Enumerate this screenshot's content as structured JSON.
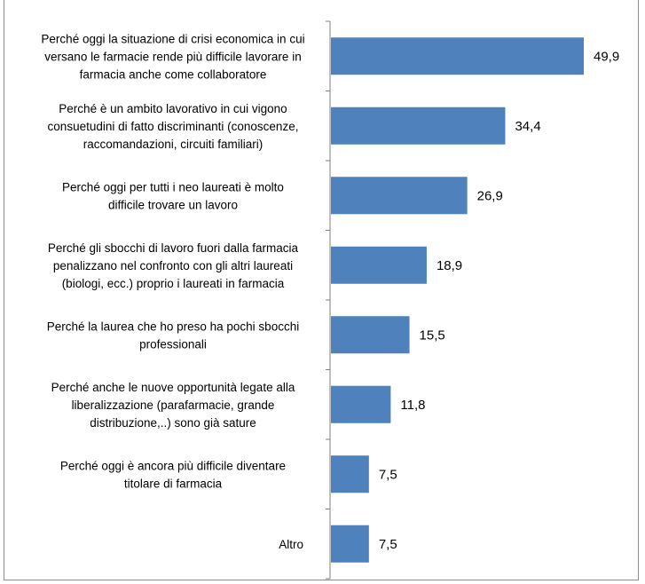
{
  "chart_data": {
    "type": "bar",
    "orientation": "horizontal",
    "title": "",
    "xlabel": "",
    "ylabel": "",
    "xlim": [
      0,
      60
    ],
    "grid": false,
    "legend": "none",
    "bar_color": "#4f81bd",
    "categories": [
      [
        "Perché oggi la situazione di crisi economica in cui",
        "versano le farmacie rende più difficile lavorare in",
        "farmacia anche come collaboratore"
      ],
      [
        "Perché è un ambito lavorativo in cui vigono",
        "consuetudini di fatto discriminanti (conoscenze,",
        "raccomandazioni, circuiti familiari)"
      ],
      [
        "Perché oggi per tutti i neo laureati è molto",
        "difficile trovare un lavoro"
      ],
      [
        "Perché gli sbocchi di lavoro fuori dalla farmacia",
        "penalizzano nel confronto con gli altri laureati",
        "(biologi, ecc.) proprio i laureati in farmacia"
      ],
      [
        "Perché la laurea che ho preso ha pochi sbocchi",
        "professionali"
      ],
      [
        "Perché anche le nuove opportunità legate alla",
        "liberalizzazione (parafarmacie, grande",
        "distribuzione,..) sono già sature"
      ],
      [
        "Perché oggi è ancora più difficile diventare",
        "titolare di farmacia"
      ],
      [
        "Altro"
      ]
    ],
    "values": [
      49.9,
      34.4,
      26.9,
      18.9,
      15.5,
      11.8,
      7.5,
      7.5
    ],
    "value_labels": [
      "49,9",
      "34,4",
      "26,9",
      "18,9",
      "15,5",
      "11,8",
      "7,5",
      "7,5"
    ]
  }
}
